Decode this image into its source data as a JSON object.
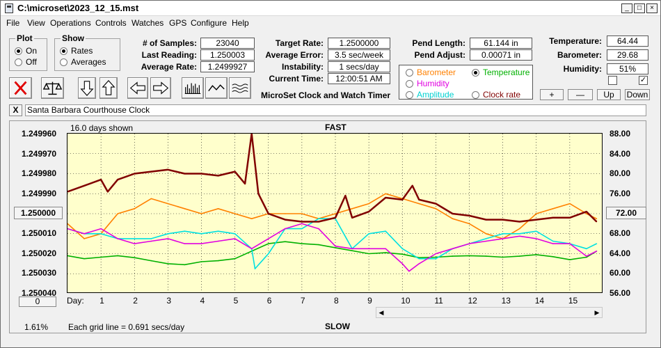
{
  "window": {
    "title": "C:\\microset\\2023_12_15.mst"
  },
  "menu": [
    "File",
    "View",
    "Operations",
    "Controls",
    "Watches",
    "GPS",
    "Configure",
    "Help"
  ],
  "plot_group": {
    "label": "Plot",
    "on": "On",
    "off": "Off",
    "selected": "On"
  },
  "show_group": {
    "label": "Show",
    "rates": "Rates",
    "averages": "Averages",
    "selected": "Rates"
  },
  "stats": {
    "samples_label": "# of Samples:",
    "samples": "23040",
    "last_label": "Last Reading:",
    "last": "1.250003",
    "avg_label": "Average Rate:",
    "avg": "1.2499927"
  },
  "rates": {
    "target_label": "Target Rate:",
    "target": "1.2500000",
    "error_label": "Average Error:",
    "error": "3.5 sec/week",
    "instab_label": "Instability:",
    "instab": "1 secs/day",
    "time_label": "Current Time:",
    "time": "12:00:51 AM"
  },
  "pend": {
    "length_label": "Pend Length:",
    "length": "61.144 in",
    "adjust_label": "Pend Adjust:",
    "adjust": "0.00071 in"
  },
  "app_caption": "MicroSet Clock and Watch Timer",
  "env": {
    "temp_label": "Temperature:",
    "temp": "64.44",
    "baro_label": "Barometer:",
    "baro": "29.68",
    "hum_label": "Humidity:",
    "hum": "51%",
    "check_left": "",
    "check_right": "✓"
  },
  "sensor_options": {
    "barometer": "Barometer",
    "temperature": "Temperature",
    "humidity": "Humidity",
    "amplitude": "Amplitude",
    "clock_rate": "Clock rate",
    "selected": "Temperature"
  },
  "adjust_buttons": {
    "plus": "+",
    "minus": "—",
    "up": "Up",
    "down": "Down"
  },
  "clock_name": "Santa Barbara Courthouse Clock",
  "clear_label": "X",
  "chart": {
    "days_shown": "16.0 days shown",
    "fast": "FAST",
    "slow": "SLOW",
    "day_label": "Day:",
    "grid_note": "Each grid line = 0.691 secs/day",
    "percent": "1.61%",
    "center_rate": "1.250000",
    "center_temp": "72.00",
    "zero_button": "0"
  },
  "colors": {
    "rate": "#800000",
    "barometer": "#ff8000",
    "temperature": "#00b000",
    "humidity": "#e000e0",
    "amplitude": "#00e0e0",
    "clock_rate": "#800000",
    "plot_bg": "#ffffcc"
  },
  "chart_data": {
    "type": "line",
    "title": "",
    "xlabel": "Day:",
    "xlim": [
      0.0,
      16.0
    ],
    "x_ticks": [
      1,
      2,
      3,
      4,
      5,
      6,
      7,
      8,
      9,
      10,
      11,
      12,
      13,
      14,
      15
    ],
    "y_left_ticks": [
      "1.249960",
      "1.249970",
      "1.249980",
      "1.249990",
      "1.250010",
      "1.250020",
      "1.250030",
      "1.250040"
    ],
    "y_left_range": [
      1.24996,
      1.25004
    ],
    "y_right_ticks": [
      "88.00",
      "84.00",
      "80.00",
      "76.00",
      "68.00",
      "64.00",
      "60.00",
      "56.00"
    ],
    "y_right_range": [
      56,
      88
    ],
    "series": [
      {
        "key": "rate",
        "axis": "left",
        "x": [
          0,
          0.5,
          1,
          1.2,
          1.5,
          2,
          2.5,
          3,
          3.5,
          4,
          4.5,
          5,
          5.3,
          5.5,
          5.7,
          6,
          6.5,
          7,
          7.5,
          8,
          8.3,
          8.5,
          9,
          9.5,
          10,
          10.3,
          10.5,
          11,
          11.5,
          12,
          12.5,
          13,
          13.5,
          14,
          14.5,
          15,
          15.5,
          15.8
        ],
        "y": [
          1.249989,
          1.249986,
          1.249983,
          1.249989,
          1.249983,
          1.24998,
          1.249979,
          1.249978,
          1.24998,
          1.24998,
          1.249981,
          1.249979,
          1.249985,
          1.24996,
          1.24999,
          1.25,
          1.250003,
          1.250004,
          1.250004,
          1.250002,
          1.249991,
          1.250002,
          1.249999,
          1.249992,
          1.249993,
          1.249986,
          1.249993,
          1.249995,
          1.25,
          1.250001,
          1.250003,
          1.250003,
          1.250004,
          1.250003,
          1.250002,
          1.250002,
          1.249999,
          1.250004
        ]
      },
      {
        "key": "barometer",
        "axis": "right",
        "x": [
          0,
          0.5,
          1,
          1.5,
          2,
          2.5,
          3,
          3.5,
          4,
          4.5,
          5,
          5.5,
          6,
          6.5,
          7,
          7.5,
          8,
          8.5,
          9,
          9.5,
          10,
          10.5,
          11,
          11.5,
          12,
          12.5,
          13,
          13.5,
          14,
          14.5,
          15,
          15.5,
          15.8
        ],
        "y": [
          70,
          67,
          68,
          72,
          73,
          75,
          74,
          73,
          72,
          73,
          72,
          71,
          72,
          72,
          72,
          71,
          72,
          73,
          74,
          76,
          75,
          74,
          73,
          71,
          70,
          68,
          67,
          69,
          72,
          73,
          74,
          72,
          71
        ]
      },
      {
        "key": "temperature",
        "axis": "right",
        "x": [
          0,
          0.5,
          1,
          1.5,
          2,
          2.5,
          3,
          3.5,
          4,
          4.5,
          5,
          5.5,
          6,
          6.5,
          7,
          7.5,
          8,
          8.5,
          9,
          9.5,
          10,
          10.5,
          11,
          11.5,
          12,
          12.5,
          13,
          13.5,
          14,
          14.5,
          15,
          15.5,
          15.8
        ],
        "y": [
          63.6,
          63.0,
          63.3,
          63.6,
          63.2,
          62.6,
          62.0,
          61.8,
          62.4,
          62.6,
          63.0,
          64.5,
          66.0,
          66.4,
          66.0,
          65.8,
          65.2,
          64.6,
          64.0,
          64.2,
          63.9,
          63.2,
          63.3,
          63.5,
          63.6,
          63.5,
          63.3,
          63.5,
          63.8,
          63.4,
          62.8,
          63.3,
          64.5
        ]
      },
      {
        "key": "humidity",
        "axis": "right",
        "x": [
          0,
          0.5,
          1,
          1.5,
          2,
          2.5,
          3,
          3.5,
          4,
          4.5,
          5,
          5.5,
          6,
          6.5,
          7,
          7.5,
          8,
          8.5,
          9,
          9.5,
          10,
          10.2,
          10.5,
          11,
          11.5,
          12,
          12.5,
          13,
          13.5,
          14,
          14.5,
          15,
          15.5,
          15.8
        ],
        "y": [
          69,
          68,
          69,
          67,
          66,
          66.5,
          67,
          66,
          66,
          66.5,
          67,
          65,
          67,
          69,
          70,
          69,
          65.5,
          65,
          65,
          65,
          62,
          60.5,
          62,
          64,
          65,
          66,
          66.5,
          67,
          67.5,
          67,
          66,
          66,
          63.5,
          64.5
        ]
      },
      {
        "key": "amplitude",
        "axis": "right",
        "x": [
          0,
          0.5,
          1,
          1.5,
          2,
          2.5,
          3,
          3.5,
          4,
          4.5,
          5,
          5.5,
          5.6,
          6,
          6.5,
          7,
          7.5,
          8,
          8.5,
          9,
          9.5,
          10,
          10.5,
          11,
          11.5,
          12,
          12.5,
          13,
          13.5,
          14,
          14.5,
          15,
          15.5,
          15.8
        ],
        "y": [
          69,
          68,
          68,
          67,
          67,
          67,
          68,
          68.5,
          68,
          68.5,
          68,
          65,
          61,
          64,
          69,
          69,
          71,
          71,
          65,
          68,
          68.5,
          65,
          63,
          63,
          65,
          66,
          67,
          68,
          68,
          68.5,
          66.5,
          66,
          65,
          66
        ]
      }
    ]
  }
}
